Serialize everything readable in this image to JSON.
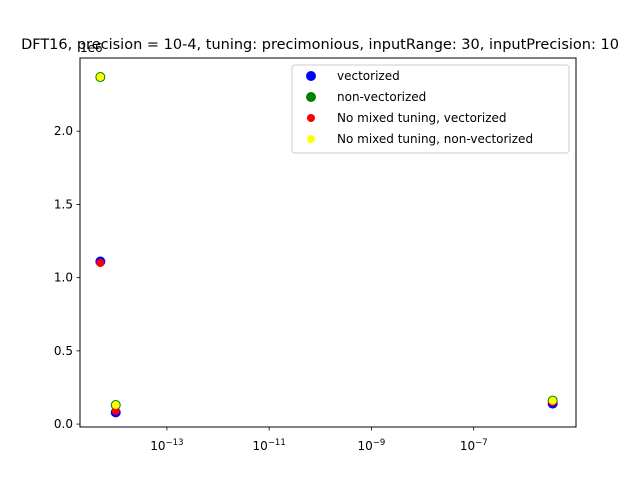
{
  "chart_data": {
    "type": "scatter",
    "title": "DFT16, precision = 10-4, tuning: precimonious, inputRange: 30, inputPrecision: 10",
    "xlabel": "",
    "ylabel": "",
    "x_scale": "log",
    "xlim": [
      2e-15,
      1e-05
    ],
    "ylim": [
      -0.02,
      2.5
    ],
    "y_multiplier_label": "1e6",
    "x_ticks": [
      {
        "value": 1e-13,
        "base": "10",
        "exp": "−13"
      },
      {
        "value": 1e-11,
        "base": "10",
        "exp": "−11"
      },
      {
        "value": 1e-09,
        "base": "10",
        "exp": "−9"
      },
      {
        "value": 1e-07,
        "base": "10",
        "exp": "−7"
      }
    ],
    "y_ticks": [
      {
        "value": 0.0,
        "label": "0.0"
      },
      {
        "value": 0.5,
        "label": "0.5"
      },
      {
        "value": 1.0,
        "label": "1.0"
      },
      {
        "value": 1.5,
        "label": "1.5"
      },
      {
        "value": 2.0,
        "label": "2.0"
      }
    ],
    "grid": false,
    "legend_position": "top-right",
    "series": [
      {
        "name": "vectorized",
        "color": "#0000ff",
        "marker_size": "large",
        "points": [
          {
            "x": 5e-15,
            "y": 1.11
          },
          {
            "x": 1e-14,
            "y": 0.08
          },
          {
            "x": 3.5e-06,
            "y": 0.14
          }
        ]
      },
      {
        "name": "non-vectorized",
        "color": "#008000",
        "marker_size": "large",
        "points": [
          {
            "x": 5e-15,
            "y": 2.37
          },
          {
            "x": 1e-14,
            "y": 0.13
          },
          {
            "x": 3.5e-06,
            "y": 0.16
          }
        ]
      },
      {
        "name": "No mixed tuning, vectorized",
        "color": "#ff0000",
        "marker_size": "small",
        "points": [
          {
            "x": 5e-15,
            "y": 1.1
          },
          {
            "x": 1e-14,
            "y": 0.09
          },
          {
            "x": 3.5e-06,
            "y": 0.15
          }
        ]
      },
      {
        "name": "No mixed tuning, non-vectorized",
        "color": "#ffff00",
        "marker_size": "small",
        "points": [
          {
            "x": 5e-15,
            "y": 2.37
          },
          {
            "x": 1e-14,
            "y": 0.13
          },
          {
            "x": 3.5e-06,
            "y": 0.16
          }
        ]
      }
    ]
  }
}
